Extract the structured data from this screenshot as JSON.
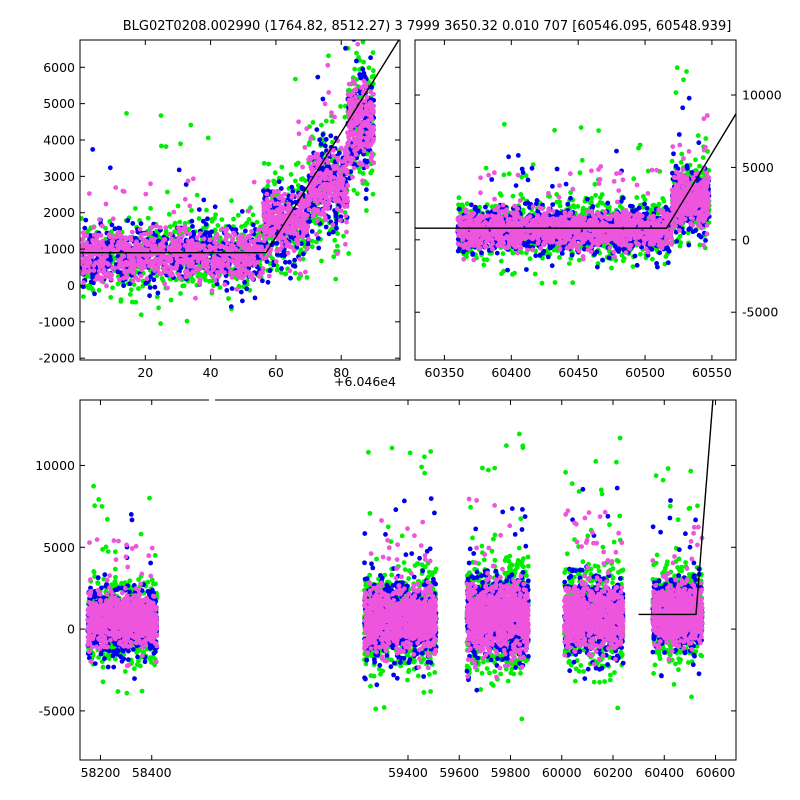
{
  "title": "BLG02T0208.002990 (1764.82, 8512.27)   3 7999 3650.32 0.010 707 [60546.095, 60548.939]",
  "colors": {
    "g": "#00ee00",
    "b": "#0000ee",
    "m": "#ee55dd",
    "fit": "#000000"
  },
  "chart_data": [
    {
      "type": "scatter",
      "panel": "top-left",
      "xlim": [
        0,
        98
      ],
      "ylim": [
        -2050,
        6750
      ],
      "x_offset_label": "+6.046e4",
      "xticks": [
        20,
        40,
        60,
        80
      ],
      "yticks": [
        -2000,
        -1000,
        0,
        1000,
        2000,
        3000,
        4000,
        5000,
        6000
      ],
      "y_axis_side": "left",
      "fit_line": [
        [
          0,
          900
        ],
        [
          57,
          900
        ],
        [
          98,
          6800
        ]
      ],
      "segments": [
        {
          "x": [
            0,
            56
          ],
          "center": 850,
          "spread": 750,
          "n": 560
        },
        {
          "x": [
            56,
            70
          ],
          "center": 1700,
          "spread": 900,
          "n": 200
        },
        {
          "x": [
            70,
            82
          ],
          "center": 2700,
          "spread": 1100,
          "n": 180
        },
        {
          "x": [
            82,
            90
          ],
          "center": 4500,
          "spread": 1300,
          "n": 160
        }
      ]
    },
    {
      "type": "scatter",
      "panel": "top-right",
      "xlim": [
        60328,
        60568
      ],
      "ylim": [
        -8300,
        13800
      ],
      "xticks": [
        60350,
        60400,
        60450,
        60500,
        60550
      ],
      "yticks": [
        -5000,
        0,
        5000,
        10000
      ],
      "y_axis_side": "right",
      "fit_line": [
        [
          60328,
          800
        ],
        [
          60516,
          800
        ],
        [
          60568,
          8700
        ]
      ],
      "segments": [
        {
          "x": [
            60360,
            60520
          ],
          "center": 700,
          "spread": 1400,
          "n": 900
        },
        {
          "x": [
            60520,
            60548
          ],
          "center": 2700,
          "spread": 1900,
          "n": 240
        }
      ]
    },
    {
      "type": "scatter",
      "panel": "bottom",
      "xlim": [
        58120,
        60680
      ],
      "ylim": [
        -8000,
        14000
      ],
      "xticks": [
        58200,
        58400,
        59400,
        59600,
        59800,
        60000,
        60200,
        60400,
        60600
      ],
      "yticks": [
        -5000,
        0,
        5000,
        10000
      ],
      "y_axis_side": "left",
      "fit_line": [
        [
          60300,
          900
        ],
        [
          60524,
          900
        ],
        [
          60590,
          14000
        ]
      ],
      "segments": [
        {
          "x": [
            58150,
            58420
          ],
          "center": 500,
          "spread": 1700,
          "n": 650
        },
        {
          "x": [
            59230,
            59510
          ],
          "center": 600,
          "spread": 2000,
          "n": 700
        },
        {
          "x": [
            59630,
            59870
          ],
          "center": 800,
          "spread": 2300,
          "n": 650
        },
        {
          "x": [
            60010,
            60240
          ],
          "center": 700,
          "spread": 2100,
          "n": 600
        },
        {
          "x": [
            60355,
            60548
          ],
          "center": 900,
          "spread": 1800,
          "n": 600
        }
      ]
    }
  ]
}
